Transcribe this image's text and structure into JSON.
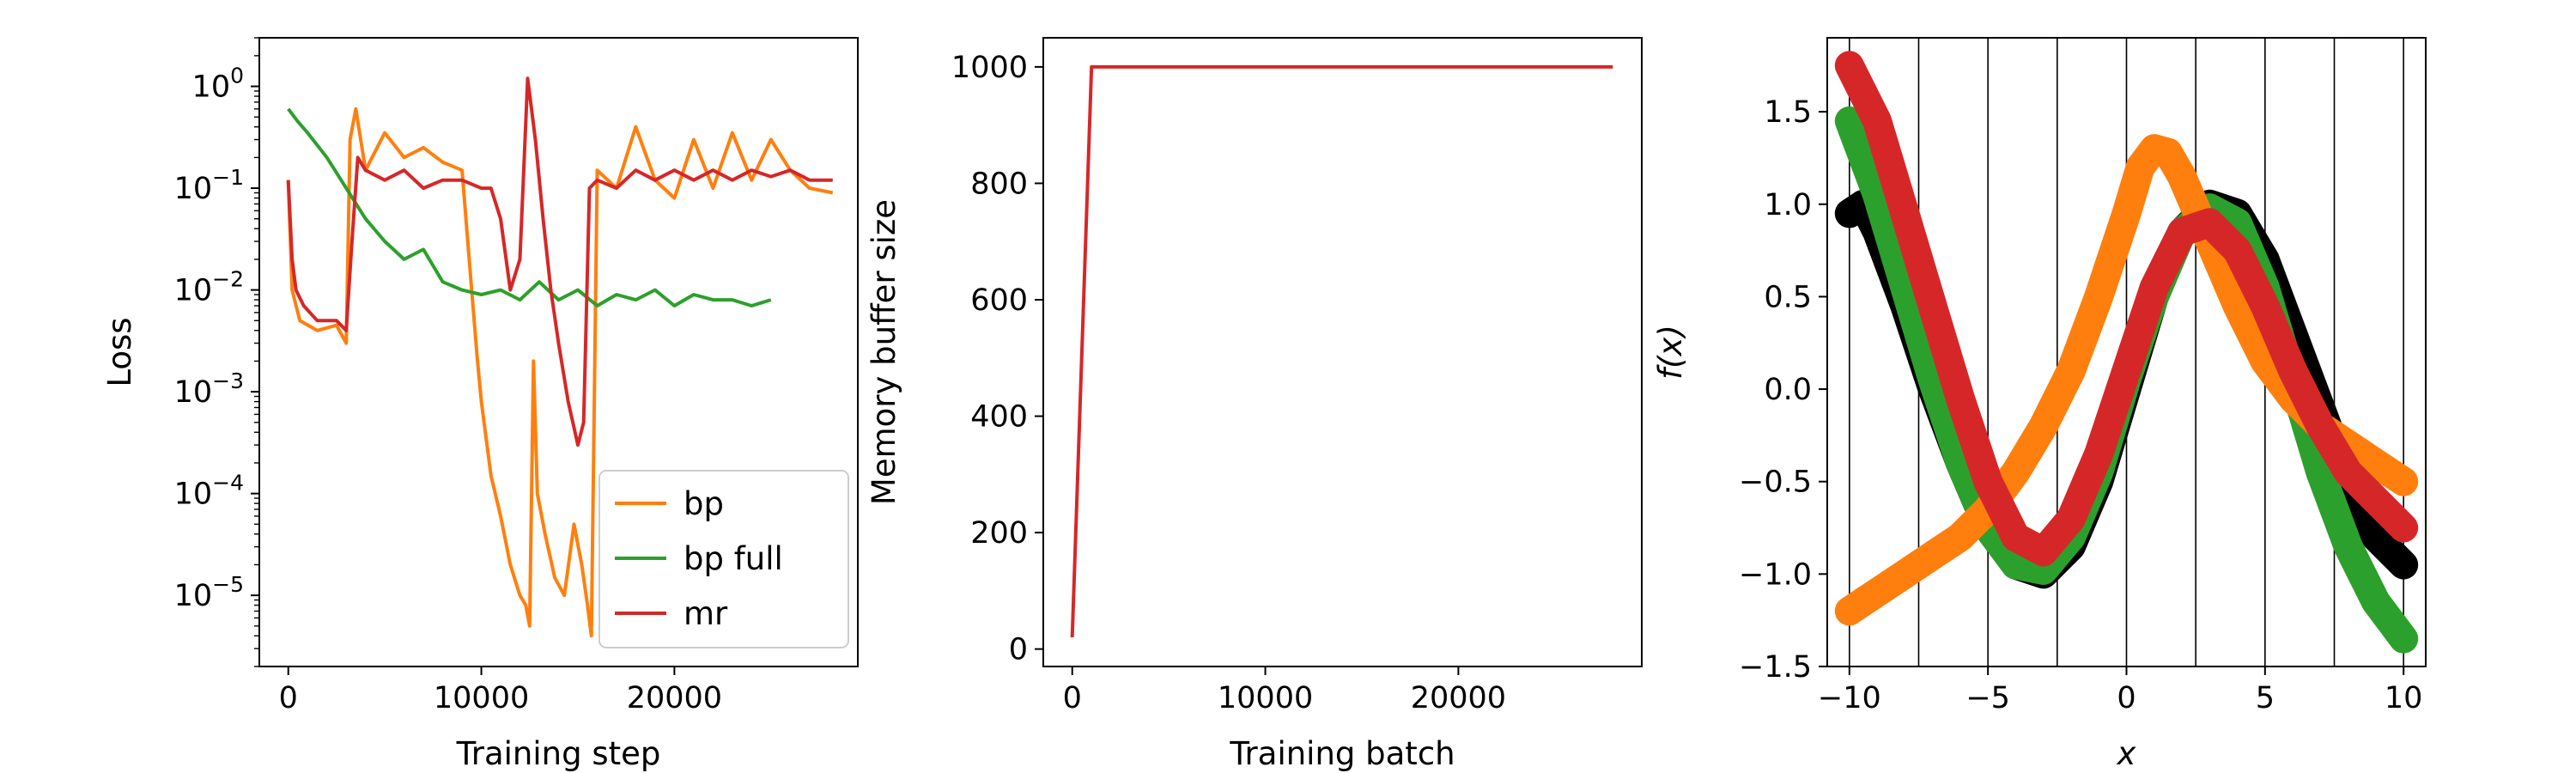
{
  "chart_data": [
    {
      "type": "line",
      "xlabel": "Training step",
      "ylabel": "Loss",
      "yscale": "log",
      "xlim": [
        -1500,
        29500
      ],
      "ylim": [
        2e-06,
        3
      ],
      "xticks": [
        0,
        10000,
        20000
      ],
      "xtick_labels": [
        "0",
        "10000",
        "20000"
      ],
      "yticks": [
        1e-05,
        0.0001,
        0.001,
        0.01,
        0.1,
        1
      ],
      "ytick_labels": [
        {
          "base": "10",
          "exp": "−5"
        },
        {
          "base": "10",
          "exp": "−4"
        },
        {
          "base": "10",
          "exp": "−3"
        },
        {
          "base": "10",
          "exp": "−2"
        },
        {
          "base": "10",
          "exp": "−1"
        },
        {
          "base": "10",
          "exp": "0"
        }
      ],
      "legend": {
        "placement": "lower-right",
        "entries": [
          "bp",
          "bp full",
          "mr"
        ]
      },
      "series": [
        {
          "name": "bp",
          "color": "#ff7f0e",
          "points": [
            [
              0,
              0.12
            ],
            [
              200,
              0.01
            ],
            [
              600,
              0.005
            ],
            [
              1500,
              0.004
            ],
            [
              2500,
              0.0045
            ],
            [
              3000,
              0.003
            ],
            [
              3200,
              0.3
            ],
            [
              3500,
              0.6
            ],
            [
              4000,
              0.15
            ],
            [
              5000,
              0.35
            ],
            [
              6000,
              0.2
            ],
            [
              7000,
              0.25
            ],
            [
              8000,
              0.18
            ],
            [
              9000,
              0.15
            ],
            [
              9500,
              0.01
            ],
            [
              9800,
              0.002
            ],
            [
              10000,
              0.0008
            ],
            [
              10500,
              0.00015
            ],
            [
              11000,
              6e-05
            ],
            [
              11500,
              2e-05
            ],
            [
              12000,
              1e-05
            ],
            [
              12300,
              8e-06
            ],
            [
              12500,
              5e-06
            ],
            [
              12700,
              0.002
            ],
            [
              12900,
              0.0001
            ],
            [
              13300,
              4e-05
            ],
            [
              13800,
              1.5e-05
            ],
            [
              14300,
              1e-05
            ],
            [
              14800,
              5e-05
            ],
            [
              15200,
              2e-05
            ],
            [
              15500,
              8e-06
            ],
            [
              15700,
              4e-06
            ],
            [
              16000,
              0.15
            ],
            [
              17000,
              0.1
            ],
            [
              18000,
              0.4
            ],
            [
              19000,
              0.12
            ],
            [
              20000,
              0.08
            ],
            [
              21000,
              0.3
            ],
            [
              22000,
              0.1
            ],
            [
              23000,
              0.35
            ],
            [
              24000,
              0.12
            ],
            [
              25000,
              0.3
            ],
            [
              26000,
              0.15
            ],
            [
              27000,
              0.1
            ],
            [
              28200,
              0.09
            ]
          ]
        },
        {
          "name": "bp full",
          "color": "#2ca02c",
          "points": [
            [
              0,
              0.6
            ],
            [
              500,
              0.45
            ],
            [
              1000,
              0.35
            ],
            [
              2000,
              0.2
            ],
            [
              3000,
              0.1
            ],
            [
              4000,
              0.05
            ],
            [
              5000,
              0.03
            ],
            [
              6000,
              0.02
            ],
            [
              7000,
              0.025
            ],
            [
              8000,
              0.012
            ],
            [
              9000,
              0.01
            ],
            [
              10000,
              0.009
            ],
            [
              11000,
              0.01
            ],
            [
              12000,
              0.008
            ],
            [
              13000,
              0.012
            ],
            [
              14000,
              0.008
            ],
            [
              15000,
              0.01
            ],
            [
              16000,
              0.007
            ],
            [
              17000,
              0.009
            ],
            [
              18000,
              0.008
            ],
            [
              19000,
              0.01
            ],
            [
              20000,
              0.007
            ],
            [
              21000,
              0.009
            ],
            [
              22000,
              0.008
            ],
            [
              23000,
              0.008
            ],
            [
              24000,
              0.007
            ],
            [
              25000,
              0.008
            ]
          ]
        },
        {
          "name": "mr",
          "color": "#d62728",
          "points": [
            [
              0,
              0.12
            ],
            [
              200,
              0.02
            ],
            [
              400,
              0.01
            ],
            [
              800,
              0.007
            ],
            [
              1500,
              0.005
            ],
            [
              2500,
              0.005
            ],
            [
              3000,
              0.004
            ],
            [
              3300,
              0.03
            ],
            [
              3600,
              0.2
            ],
            [
              4000,
              0.15
            ],
            [
              5000,
              0.12
            ],
            [
              6000,
              0.15
            ],
            [
              7000,
              0.1
            ],
            [
              8000,
              0.12
            ],
            [
              9000,
              0.12
            ],
            [
              10000,
              0.1
            ],
            [
              10500,
              0.1
            ],
            [
              11000,
              0.05
            ],
            [
              11500,
              0.01
            ],
            [
              12000,
              0.02
            ],
            [
              12400,
              1.2
            ],
            [
              12800,
              0.3
            ],
            [
              13200,
              0.05
            ],
            [
              13600,
              0.01
            ],
            [
              14000,
              0.003
            ],
            [
              14500,
              0.0008
            ],
            [
              15000,
              0.0003
            ],
            [
              15300,
              0.0005
            ],
            [
              15600,
              0.1
            ],
            [
              16000,
              0.12
            ],
            [
              17000,
              0.1
            ],
            [
              18000,
              0.15
            ],
            [
              19000,
              0.12
            ],
            [
              20000,
              0.15
            ],
            [
              21000,
              0.12
            ],
            [
              22000,
              0.15
            ],
            [
              23000,
              0.12
            ],
            [
              24000,
              0.15
            ],
            [
              25000,
              0.13
            ],
            [
              26000,
              0.15
            ],
            [
              27000,
              0.12
            ],
            [
              28200,
              0.12
            ]
          ]
        }
      ]
    },
    {
      "type": "line",
      "xlabel": "Training batch",
      "ylabel": "Memory buffer size",
      "xlim": [
        -1500,
        29500
      ],
      "ylim": [
        -30,
        1050
      ],
      "xticks": [
        0,
        10000,
        20000
      ],
      "xtick_labels": [
        "0",
        "10000",
        "20000"
      ],
      "yticks": [
        0,
        200,
        400,
        600,
        800,
        1000
      ],
      "ytick_labels": [
        "0",
        "200",
        "400",
        "600",
        "800",
        "1000"
      ],
      "series": [
        {
          "color": "#d62728",
          "points": [
            [
              0,
              20
            ],
            [
              1000,
              1000
            ],
            [
              28000,
              1000
            ]
          ]
        }
      ]
    },
    {
      "type": "scatter",
      "xlabel": "x",
      "ylabel": "f(x)",
      "xlim": [
        -10.8,
        10.8
      ],
      "ylim": [
        -1.5,
        1.9
      ],
      "xticks": [
        -10,
        -5,
        0,
        5,
        10
      ],
      "xtick_labels": [
        "−10",
        "−5",
        "0",
        "5",
        "10"
      ],
      "yticks": [
        -1.5,
        -1.0,
        -0.5,
        0.0,
        0.5,
        1.0,
        1.5
      ],
      "ytick_labels": [
        "−1.5",
        "−1.0",
        "−0.5",
        "0.0",
        "0.5",
        "1.0",
        "1.5"
      ],
      "vlines": [
        -10,
        -7.5,
        -5,
        -2.5,
        0,
        2.5,
        5,
        7.5,
        10
      ],
      "series": [
        {
          "color": "#000000",
          "points": [
            [
              -10,
              0.95
            ],
            [
              -9.5,
              1.0
            ],
            [
              -9,
              0.85
            ],
            [
              -8,
              0.45
            ],
            [
              -7,
              0.0
            ],
            [
              -6,
              -0.4
            ],
            [
              -5,
              -0.75
            ],
            [
              -4,
              -0.95
            ],
            [
              -3,
              -1.0
            ],
            [
              -2,
              -0.85
            ],
            [
              -1,
              -0.5
            ],
            [
              0,
              0.0
            ],
            [
              1,
              0.5
            ],
            [
              2,
              0.85
            ],
            [
              3,
              1.0
            ],
            [
              4,
              0.95
            ],
            [
              5,
              0.7
            ],
            [
              6,
              0.3
            ],
            [
              7,
              -0.1
            ],
            [
              8,
              -0.5
            ],
            [
              9,
              -0.8
            ],
            [
              10,
              -0.95
            ]
          ]
        },
        {
          "color": "#2ca02c",
          "points": [
            [
              -10,
              1.45
            ],
            [
              -9,
              1.05
            ],
            [
              -8,
              0.55
            ],
            [
              -7,
              0.05
            ],
            [
              -6,
              -0.4
            ],
            [
              -5,
              -0.75
            ],
            [
              -4,
              -0.95
            ],
            [
              -3,
              -0.98
            ],
            [
              -2,
              -0.8
            ],
            [
              -1,
              -0.45
            ],
            [
              0,
              0.05
            ],
            [
              1,
              0.5
            ],
            [
              2,
              0.85
            ],
            [
              3,
              0.98
            ],
            [
              4,
              0.9
            ],
            [
              5,
              0.55
            ],
            [
              6,
              0.05
            ],
            [
              7,
              -0.45
            ],
            [
              8,
              -0.85
            ],
            [
              9,
              -1.15
            ],
            [
              10,
              -1.35
            ]
          ]
        },
        {
          "color": "#ff7f0e",
          "points": [
            [
              -10,
              -1.2
            ],
            [
              -9,
              -1.1
            ],
            [
              -8,
              -1.0
            ],
            [
              -7,
              -0.9
            ],
            [
              -6,
              -0.8
            ],
            [
              -5,
              -0.65
            ],
            [
              -4,
              -0.45
            ],
            [
              -3,
              -0.2
            ],
            [
              -2,
              0.1
            ],
            [
              -1,
              0.5
            ],
            [
              0,
              0.95
            ],
            [
              0.5,
              1.2
            ],
            [
              1,
              1.3
            ],
            [
              1.5,
              1.28
            ],
            [
              2,
              1.15
            ],
            [
              3,
              0.8
            ],
            [
              4,
              0.45
            ],
            [
              5,
              0.15
            ],
            [
              6,
              -0.05
            ],
            [
              7,
              -0.2
            ],
            [
              8,
              -0.3
            ],
            [
              9,
              -0.4
            ],
            [
              10,
              -0.5
            ]
          ]
        },
        {
          "color": "#d62728",
          "points": [
            [
              -10,
              1.75
            ],
            [
              -9,
              1.45
            ],
            [
              -8,
              0.95
            ],
            [
              -7,
              0.45
            ],
            [
              -6,
              -0.05
            ],
            [
              -5,
              -0.5
            ],
            [
              -4,
              -0.8
            ],
            [
              -3,
              -0.88
            ],
            [
              -2,
              -0.7
            ],
            [
              -1,
              -0.35
            ],
            [
              0,
              0.1
            ],
            [
              1,
              0.55
            ],
            [
              2,
              0.85
            ],
            [
              3,
              0.9
            ],
            [
              4,
              0.75
            ],
            [
              5,
              0.45
            ],
            [
              6,
              0.1
            ],
            [
              7,
              -0.2
            ],
            [
              8,
              -0.45
            ],
            [
              9,
              -0.6
            ],
            [
              10,
              -0.75
            ]
          ]
        }
      ]
    }
  ]
}
